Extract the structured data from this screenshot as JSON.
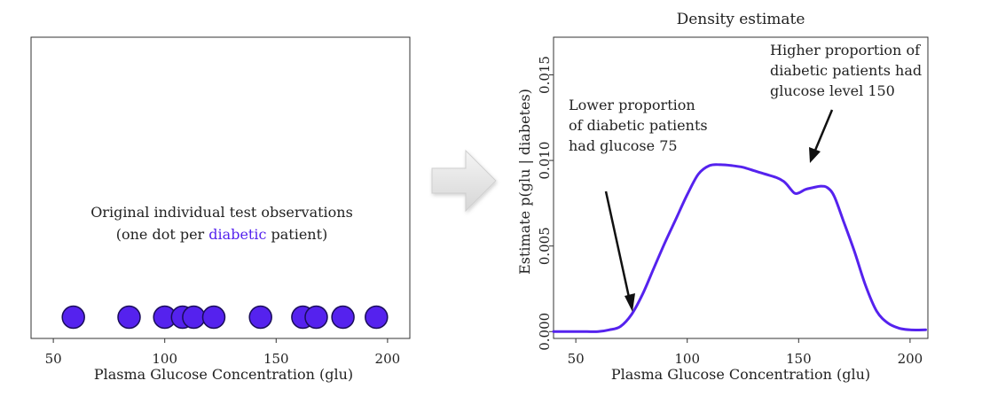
{
  "colors": {
    "series": "#5522ee",
    "dot_stroke": "#1a0d5a",
    "axis": "#333333",
    "arrow": "#111111"
  },
  "chart_data": [
    {
      "type": "scatter",
      "title": "",
      "annotation_line1": "Original individual test observations",
      "annotation_line2_prefix": "(one dot per ",
      "annotation_line2_highlight": "diabetic",
      "annotation_line2_suffix": " patient)",
      "xlabel": "Plasma Glucose Concentration (glu)",
      "ylabel": "",
      "xlim": [
        40,
        210
      ],
      "xticks": [
        50,
        100,
        150,
        200
      ],
      "x": [
        59,
        84,
        100,
        108,
        113,
        122,
        143,
        162,
        168,
        180,
        195
      ],
      "grid": false
    },
    {
      "type": "line",
      "title": "Density estimate",
      "xlabel": "Plasma Glucose Concentration (glu)",
      "ylabel": "Estimate  p(glu | diabetes)",
      "xlim": [
        40,
        208
      ],
      "ylim": [
        -0.0004,
        0.0172
      ],
      "xticks": [
        50,
        100,
        150,
        200
      ],
      "yticks": [
        "0.000",
        "0.005",
        "0.010",
        "0.015"
      ],
      "x": [
        40,
        50,
        55,
        60,
        65,
        70,
        75,
        80,
        85,
        90,
        95,
        100,
        105,
        110,
        115,
        120,
        125,
        130,
        135,
        140,
        143,
        145,
        148,
        150,
        153,
        156,
        160,
        163,
        166,
        170,
        175,
        180,
        185,
        190,
        195,
        200,
        207
      ],
      "y": [
        0.0,
        0.0,
        0.0,
        0.0,
        0.0001,
        0.0003,
        0.001,
        0.0022,
        0.0037,
        0.0052,
        0.0066,
        0.008,
        0.0092,
        0.0097,
        0.00975,
        0.0097,
        0.0096,
        0.0094,
        0.0092,
        0.009,
        0.0088,
        0.00855,
        0.0081,
        0.0081,
        0.0083,
        0.0084,
        0.0085,
        0.0084,
        0.0079,
        0.0065,
        0.0047,
        0.0027,
        0.0012,
        0.0005,
        0.0002,
        0.0001,
        0.0001
      ],
      "grid": false,
      "annotations": [
        {
          "lines": [
            "Lower proportion",
            "of diabetic patients",
            "had  glucose 75"
          ],
          "target_x": 75
        },
        {
          "lines": [
            "Higher proportion of",
            "diabetic patients had",
            "glucose level 150"
          ],
          "target_x": 150
        }
      ]
    }
  ]
}
